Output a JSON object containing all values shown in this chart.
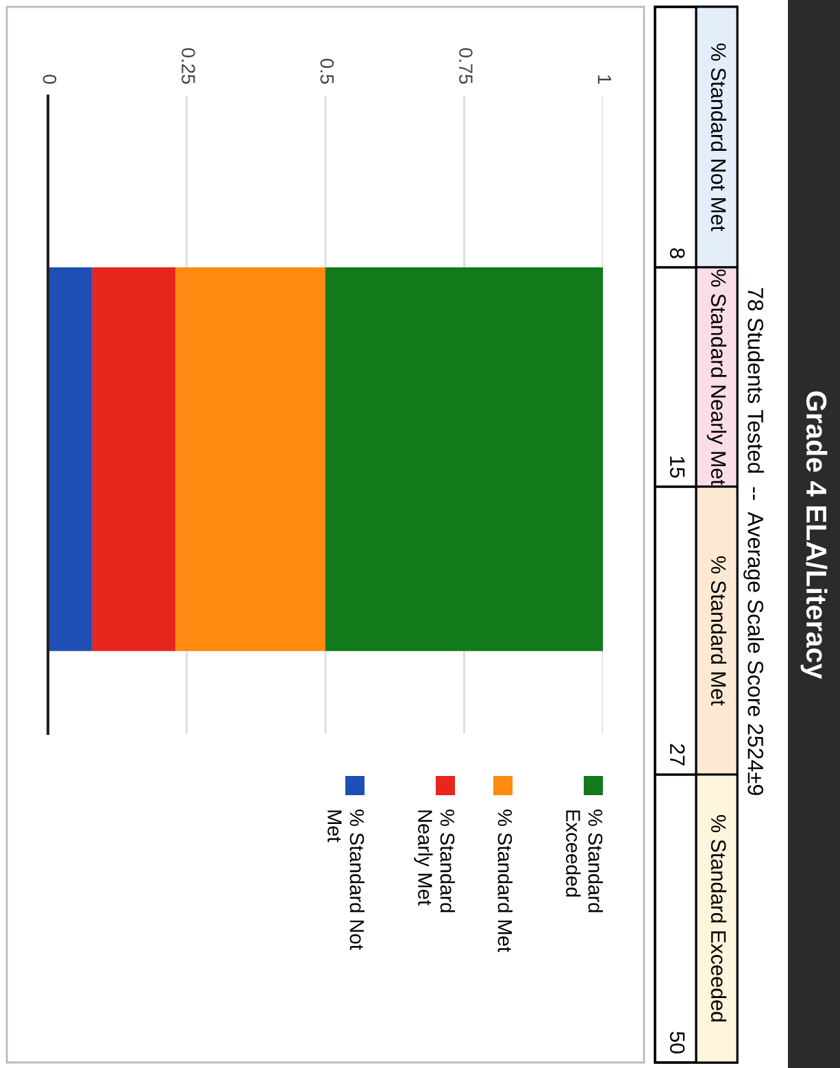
{
  "chart_data": {
    "type": "bar",
    "orientation": "horizontal",
    "stacked": true,
    "title": "Grade 4 ELA/Literacy",
    "subtitle": "78 Students Tested  --  Average Scale Score 2524±9",
    "categories": [
      null
    ],
    "series": [
      {
        "name": "% Standard Not Met",
        "color": "#1f4fb5",
        "values": [
          0.08
        ]
      },
      {
        "name": "% Standard Nearly Met",
        "color": "#e8261d",
        "values": [
          0.15
        ]
      },
      {
        "name": "% Standard Met",
        "color": "#ff8a0f",
        "values": [
          0.27
        ]
      },
      {
        "name": "% Standard Exceeded",
        "color": "#137a1c",
        "values": [
          0.5
        ]
      }
    ],
    "annotations": [
      "8",
      "15",
      "27",
      "50"
    ],
    "xlim": [
      0,
      1
    ],
    "xticks": [
      0,
      0.25,
      0.5,
      0.75,
      1
    ],
    "grid": "x",
    "legend": "bottom right"
  }
}
